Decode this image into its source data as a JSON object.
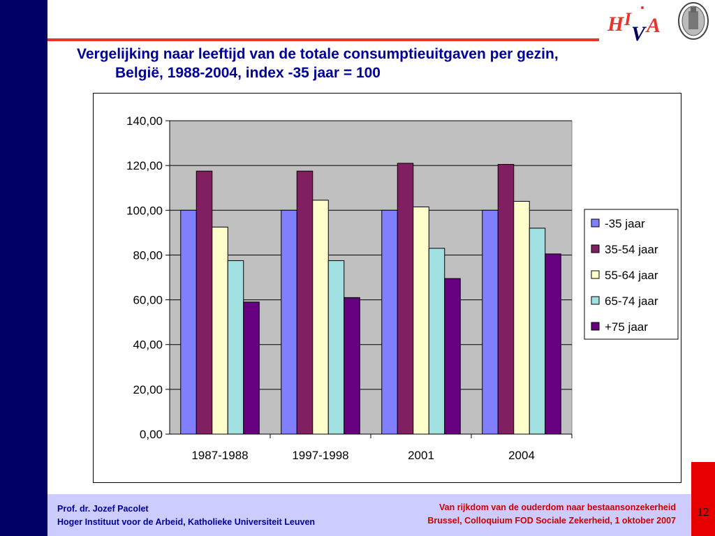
{
  "title": {
    "line1": "Vergelijking naar leeftijd van de totale consumptieuitgaven per gezin,",
    "line2": "België, 1988-2004, index -35 jaar = 100"
  },
  "logo": {
    "text": "HIVA"
  },
  "footer": {
    "author": "Prof. dr. Jozef Pacolet",
    "institute": "Hoger Instituut voor de Arbeid, Katholieke Universiteit Leuven",
    "talk_title": "Van rijkdom van de ouderdom naar bestaansonzekerheid",
    "talk_event": "Brussel, Colloquium FOD Sociale Zekerheid, 1 oktober 2007"
  },
  "page_number": "12",
  "colors": {
    "left_bar": "#000066",
    "accent_rule": "#e8342c",
    "title": "#000099",
    "plot_bg": "#c0c0c0",
    "footer_bg": "#ccccff"
  },
  "chart_data": {
    "type": "bar",
    "categories": [
      "1987-1988",
      "1997-1998",
      "2001",
      "2004"
    ],
    "series": [
      {
        "name": "-35 jaar",
        "color": "#8080ff",
        "values": [
          100.0,
          100.0,
          100.0,
          100.0
        ]
      },
      {
        "name": "35-54 jaar",
        "color": "#802060",
        "values": [
          117.5,
          117.5,
          121.0,
          120.5
        ]
      },
      {
        "name": "55-64 jaar",
        "color": "#ffffcc",
        "values": [
          92.5,
          104.5,
          101.5,
          104.0
        ]
      },
      {
        "name": "65-74 jaar",
        "color": "#a0e0e0",
        "values": [
          77.5,
          77.5,
          83.0,
          92.0
        ]
      },
      {
        "name": "+75 jaar",
        "color": "#660080",
        "values": [
          59.0,
          61.0,
          69.5,
          80.5
        ]
      }
    ],
    "yticks": [
      "0,00",
      "20,00",
      "40,00",
      "60,00",
      "80,00",
      "100,00",
      "120,00",
      "140,00"
    ],
    "ylim": [
      0,
      140
    ],
    "ystep": 20,
    "grid": true,
    "legend_position": "right",
    "xlabel": "",
    "ylabel": ""
  }
}
